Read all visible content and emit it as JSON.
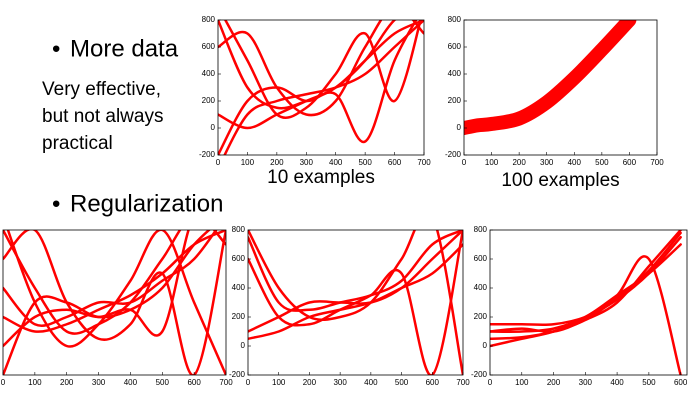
{
  "slide": {
    "bullets": [
      "More data",
      "Regularization"
    ],
    "note_lines": [
      "Very effective,",
      "but not always",
      "practical"
    ]
  },
  "chart_data": [
    {
      "type": "line",
      "caption": "10 examples",
      "xlim": [
        0,
        700
      ],
      "ylim": [
        -200,
        800
      ],
      "xticks": [
        0,
        100,
        200,
        300,
        400,
        500,
        600,
        700
      ],
      "yticks": [
        -200,
        0,
        200,
        400,
        600,
        800
      ],
      "x": [
        0,
        100,
        200,
        300,
        400,
        500,
        600,
        700
      ],
      "series": [
        {
          "color": "#ff0000",
          "values": [
            800,
            300,
            150,
            200,
            300,
            500,
            800,
            900
          ]
        },
        {
          "color": "#ff0000",
          "values": [
            -300,
            100,
            200,
            250,
            300,
            400,
            600,
            800
          ]
        },
        {
          "color": "#ff0000",
          "values": [
            600,
            700,
            300,
            100,
            200,
            600,
            900,
            700
          ]
        },
        {
          "color": "#ff0000",
          "values": [
            100,
            0,
            100,
            200,
            300,
            500,
            700,
            800
          ]
        },
        {
          "color": "#ff0000",
          "values": [
            900,
            500,
            100,
            150,
            400,
            700,
            200,
            900
          ]
        },
        {
          "color": "#ff0000",
          "values": [
            -200,
            200,
            300,
            200,
            250,
            -100,
            500,
            900
          ]
        }
      ]
    },
    {
      "type": "line",
      "caption": "100 examples",
      "xlim": [
        0,
        700
      ],
      "ylim": [
        -200,
        800
      ],
      "xticks": [
        0,
        100,
        200,
        300,
        400,
        500,
        600,
        700
      ],
      "yticks": [
        -200,
        0,
        200,
        400,
        600,
        800
      ],
      "x": [
        0,
        50,
        100,
        200,
        300,
        400,
        500,
        600
      ],
      "series": [
        {
          "color": "#ff0000",
          "values": [
            0,
            20,
            30,
            70,
            190,
            370,
            580,
            800
          ]
        }
      ]
    },
    {
      "type": "line",
      "xlim": [
        0,
        700
      ],
      "ylim": [
        -200,
        800
      ],
      "xticks": [
        0,
        100,
        200,
        300,
        400,
        500,
        600,
        700
      ],
      "x": [
        0,
        100,
        200,
        300,
        400,
        500,
        600,
        700
      ],
      "series": [
        {
          "color": "#ff0000",
          "values": [
            800,
            400,
            100,
            150,
            300,
            600,
            900,
            700
          ]
        },
        {
          "color": "#ff0000",
          "values": [
            -200,
            300,
            300,
            200,
            250,
            400,
            700,
            900
          ]
        },
        {
          "color": "#ff0000",
          "values": [
            600,
            800,
            300,
            50,
            150,
            500,
            -200,
            800
          ]
        },
        {
          "color": "#ff0000",
          "values": [
            200,
            100,
            150,
            250,
            350,
            500,
            700,
            800
          ]
        },
        {
          "color": "#ff0000",
          "values": [
            900,
            300,
            0,
            150,
            450,
            800,
            300,
            -200
          ]
        },
        {
          "color": "#ff0000",
          "values": [
            0,
            200,
            250,
            200,
            250,
            100,
            900,
            800
          ]
        },
        {
          "color": "#ff0000",
          "values": [
            400,
            150,
            200,
            300,
            300,
            450,
            600,
            900
          ]
        }
      ]
    },
    {
      "type": "line",
      "xlim": [
        0,
        700
      ],
      "ylim": [
        -200,
        800
      ],
      "xticks": [
        0,
        100,
        200,
        300,
        400,
        500,
        600,
        700
      ],
      "yticks": [
        -200,
        0,
        200,
        400,
        600,
        800
      ],
      "x": [
        0,
        100,
        200,
        300,
        400,
        500,
        600,
        700
      ],
      "series": [
        {
          "color": "#ff0000",
          "values": [
            750,
            300,
            250,
            300,
            350,
            450,
            700,
            800
          ]
        },
        {
          "color": "#ff0000",
          "values": [
            600,
            200,
            150,
            250,
            350,
            500,
            -200,
            800
          ]
        },
        {
          "color": "#ff0000",
          "values": [
            100,
            200,
            300,
            300,
            300,
            400,
            600,
            800
          ]
        },
        {
          "color": "#ff0000",
          "values": [
            50,
            100,
            200,
            250,
            300,
            400,
            500,
            700
          ]
        },
        {
          "color": "#ff0000",
          "values": [
            800,
            400,
            200,
            200,
            300,
            600,
            900,
            -200
          ]
        }
      ]
    },
    {
      "type": "line",
      "xlim": [
        0,
        620
      ],
      "ylim": [
        -200,
        800
      ],
      "xticks": [
        0,
        100,
        200,
        300,
        400,
        500,
        600
      ],
      "yticks": [
        -200,
        0,
        200,
        400,
        600,
        800
      ],
      "x": [
        0,
        100,
        200,
        300,
        400,
        500,
        600
      ],
      "series": [
        {
          "color": "#ff0000",
          "values": [
            100,
            100,
            120,
            200,
            350,
            500,
            700
          ]
        },
        {
          "color": "#ff0000",
          "values": [
            150,
            150,
            150,
            200,
            320,
            500,
            750
          ]
        },
        {
          "color": "#ff0000",
          "values": [
            50,
            60,
            100,
            180,
            330,
            520,
            780
          ]
        },
        {
          "color": "#ff0000",
          "values": [
            0,
            50,
            100,
            200,
            350,
            600,
            -200
          ]
        },
        {
          "color": "#ff0000",
          "values": [
            100,
            120,
            100,
            180,
            300,
            550,
            800
          ]
        }
      ]
    }
  ]
}
